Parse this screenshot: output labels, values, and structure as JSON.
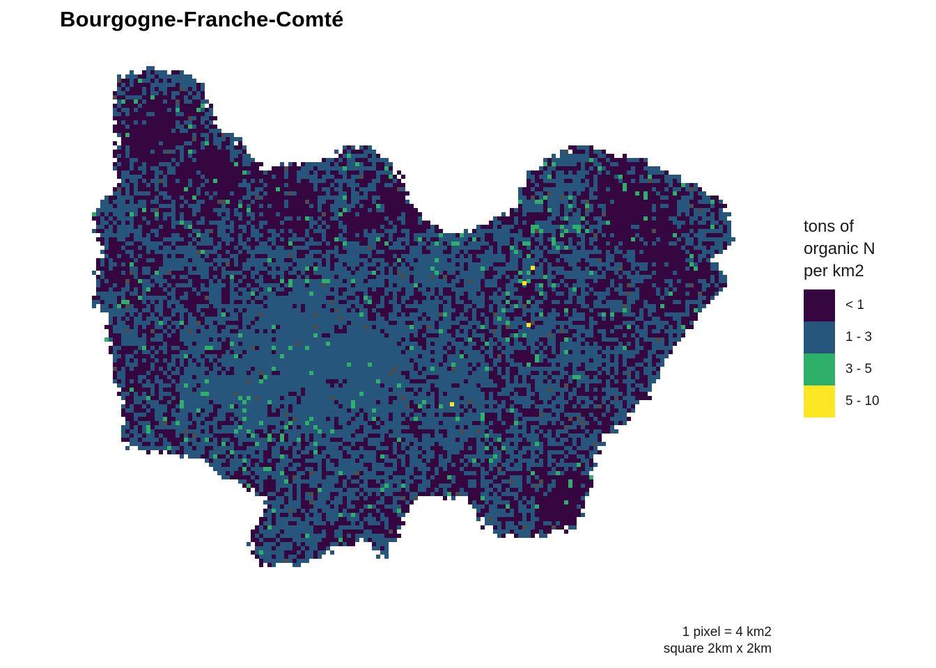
{
  "title": "Bourgogne-Franche-Comté",
  "legend": {
    "title_lines": [
      "tons of",
      "organic N",
      "per km2"
    ],
    "items": [
      {
        "label": "< 1",
        "color": "#35063f"
      },
      {
        "label": "1 - 3",
        "color": "#27567c"
      },
      {
        "label": "3 - 5",
        "color": "#2eb06b"
      },
      {
        "label": "5 - 10",
        "color": "#fde725"
      }
    ],
    "na_color": "#4d4d4d"
  },
  "caption": {
    "line1": "1 pixel = 4 km2",
    "line2": "square 2km x 2km"
  },
  "chart_data": {
    "type": "heatmap",
    "title": "Bourgogne-Franche-Comté",
    "legend_title": "tons of organic N per km2",
    "classes": [
      "< 1",
      "1 - 3",
      "3 - 5",
      "5 - 10"
    ],
    "legend_position": "right",
    "grid": false
  }
}
